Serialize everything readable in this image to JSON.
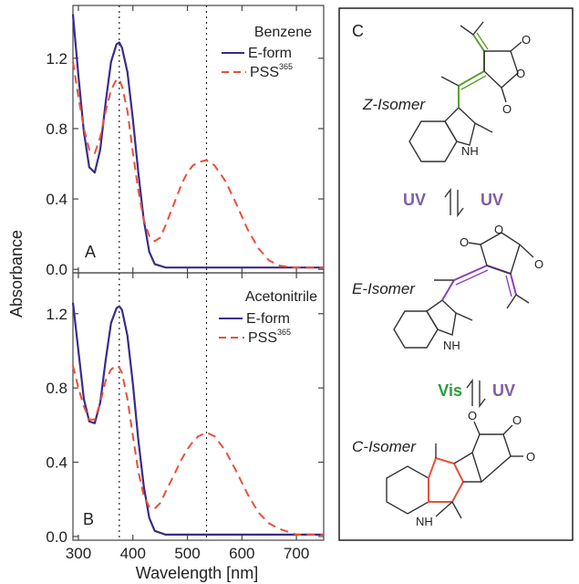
{
  "colors": {
    "e_form": "#3d2a8a",
    "pss": "#e8503a",
    "z_bond": "#5aa02c",
    "e_bond": "#8a3fc0",
    "c_bond": "#e8503a",
    "uv": "#7b5ea8",
    "vis": "#2e9a3e"
  },
  "axes": {
    "xlabel": "Wavelength [nm]",
    "ylabel": "Absorbance",
    "xticks": [
      "300",
      "400",
      "500",
      "600",
      "700"
    ],
    "yticks_A": [
      "0.0",
      "0.4",
      "0.8",
      "1.2"
    ],
    "yticks_B": [
      "0.0",
      "0.4",
      "0.8",
      "1.2"
    ]
  },
  "panelA": {
    "letter": "A",
    "solvent": "Benzene",
    "e_label": "E-form",
    "pss_label": "PSS",
    "pss_sup": "365"
  },
  "panelB": {
    "letter": "B",
    "solvent": "Acetonitrile",
    "e_label": "E-form",
    "pss_label": "PSS",
    "pss_sup": "365"
  },
  "panelC": {
    "letter": "C",
    "z_label": "Z-Isomer",
    "e_label": "E-Isomer",
    "c_label": "C-Isomer",
    "step1_left": "UV",
    "step1_right": "UV",
    "step2_left": "Vis",
    "step2_right": "UV",
    "atom_o": "O",
    "atom_nh": "NH"
  },
  "chart_data": [
    {
      "type": "line",
      "title": "",
      "xlabel": "Wavelength [nm]",
      "ylabel": "Absorbance",
      "xlim": [
        290,
        750
      ],
      "ylim": [
        -0.02,
        1.5
      ],
      "vlines": [
        375,
        535
      ],
      "series": [
        {
          "name": "E-form",
          "points": [
            [
              290,
              1.45
            ],
            [
              300,
              1.1
            ],
            [
              310,
              0.78
            ],
            [
              320,
              0.58
            ],
            [
              330,
              0.55
            ],
            [
              340,
              0.68
            ],
            [
              350,
              0.95
            ],
            [
              360,
              1.18
            ],
            [
              370,
              1.28
            ],
            [
              375,
              1.29
            ],
            [
              380,
              1.26
            ],
            [
              390,
              1.12
            ],
            [
              400,
              0.85
            ],
            [
              410,
              0.55
            ],
            [
              420,
              0.28
            ],
            [
              430,
              0.1
            ],
            [
              440,
              0.03
            ],
            [
              460,
              0.01
            ],
            [
              500,
              0.01
            ],
            [
              550,
              0.01
            ],
            [
              600,
              0.01
            ],
            [
              650,
              0.01
            ],
            [
              700,
              0.01
            ],
            [
              750,
              0.01
            ]
          ]
        },
        {
          "name": "PSS365",
          "points": [
            [
              290,
              1.18
            ],
            [
              300,
              0.98
            ],
            [
              310,
              0.8
            ],
            [
              320,
              0.68
            ],
            [
              330,
              0.66
            ],
            [
              340,
              0.75
            ],
            [
              350,
              0.9
            ],
            [
              360,
              1.02
            ],
            [
              370,
              1.08
            ],
            [
              375,
              1.08
            ],
            [
              380,
              1.04
            ],
            [
              390,
              0.9
            ],
            [
              400,
              0.66
            ],
            [
              410,
              0.45
            ],
            [
              420,
              0.28
            ],
            [
              430,
              0.19
            ],
            [
              440,
              0.16
            ],
            [
              450,
              0.18
            ],
            [
              460,
              0.25
            ],
            [
              470,
              0.33
            ],
            [
              480,
              0.41
            ],
            [
              490,
              0.49
            ],
            [
              500,
              0.55
            ],
            [
              510,
              0.59
            ],
            [
              520,
              0.61
            ],
            [
              535,
              0.62
            ],
            [
              550,
              0.59
            ],
            [
              570,
              0.5
            ],
            [
              590,
              0.37
            ],
            [
              610,
              0.23
            ],
            [
              630,
              0.12
            ],
            [
              650,
              0.05
            ],
            [
              670,
              0.02
            ],
            [
              700,
              0.01
            ],
            [
              750,
              0.01
            ]
          ]
        }
      ]
    },
    {
      "type": "line",
      "title": "",
      "xlabel": "Wavelength [nm]",
      "ylabel": "Absorbance",
      "xlim": [
        290,
        750
      ],
      "ylim": [
        -0.02,
        1.42
      ],
      "vlines": [
        375,
        535
      ],
      "series": [
        {
          "name": "E-form",
          "points": [
            [
              290,
              1.26
            ],
            [
              300,
              1.0
            ],
            [
              310,
              0.74
            ],
            [
              320,
              0.62
            ],
            [
              330,
              0.61
            ],
            [
              340,
              0.72
            ],
            [
              350,
              0.95
            ],
            [
              360,
              1.15
            ],
            [
              370,
              1.23
            ],
            [
              375,
              1.24
            ],
            [
              380,
              1.22
            ],
            [
              390,
              1.08
            ],
            [
              400,
              0.82
            ],
            [
              410,
              0.52
            ],
            [
              420,
              0.27
            ],
            [
              430,
              0.1
            ],
            [
              440,
              0.03
            ],
            [
              460,
              0.01
            ],
            [
              500,
              0.01
            ],
            [
              550,
              0.01
            ],
            [
              600,
              0.01
            ],
            [
              650,
              0.01
            ],
            [
              700,
              0.01
            ],
            [
              750,
              0.01
            ]
          ]
        },
        {
          "name": "PSS365",
          "points": [
            [
              290,
              0.92
            ],
            [
              300,
              0.8
            ],
            [
              310,
              0.7
            ],
            [
              320,
              0.63
            ],
            [
              330,
              0.63
            ],
            [
              340,
              0.72
            ],
            [
              350,
              0.84
            ],
            [
              360,
              0.9
            ],
            [
              370,
              0.92
            ],
            [
              375,
              0.91
            ],
            [
              380,
              0.88
            ],
            [
              390,
              0.74
            ],
            [
              400,
              0.54
            ],
            [
              410,
              0.35
            ],
            [
              420,
              0.22
            ],
            [
              430,
              0.16
            ],
            [
              440,
              0.15
            ],
            [
              450,
              0.18
            ],
            [
              460,
              0.24
            ],
            [
              470,
              0.3
            ],
            [
              480,
              0.36
            ],
            [
              490,
              0.42
            ],
            [
              500,
              0.47
            ],
            [
              510,
              0.51
            ],
            [
              520,
              0.54
            ],
            [
              535,
              0.56
            ],
            [
              550,
              0.54
            ],
            [
              570,
              0.46
            ],
            [
              590,
              0.35
            ],
            [
              610,
              0.23
            ],
            [
              630,
              0.13
            ],
            [
              650,
              0.07
            ],
            [
              670,
              0.04
            ],
            [
              700,
              0.01
            ],
            [
              750,
              0.01
            ]
          ]
        }
      ]
    }
  ]
}
